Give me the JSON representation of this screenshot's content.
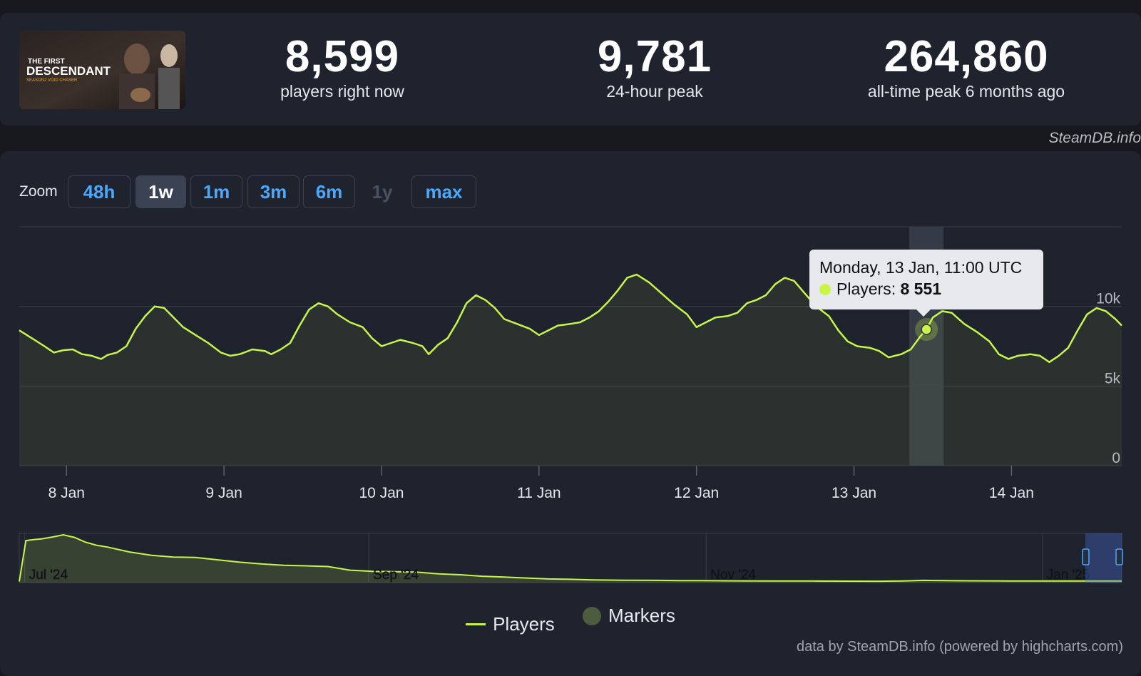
{
  "stats": [
    {
      "value": "8,599",
      "label": "players right now"
    },
    {
      "value": "9,781",
      "label": "24-hour peak"
    },
    {
      "value": "264,860",
      "label": "all-time peak 6 months ago"
    }
  ],
  "game": {
    "line1": "THE FIRST",
    "line2": "DESCENDANT",
    "line3": "SEASON2 VOID CHASER"
  },
  "credit_top": "SteamDB.info",
  "zoom": {
    "label": "Zoom",
    "buttons": [
      {
        "label": "48h",
        "state": "normal"
      },
      {
        "label": "1w",
        "state": "active"
      },
      {
        "label": "1m",
        "state": "normal"
      },
      {
        "label": "3m",
        "state": "normal"
      },
      {
        "label": "6m",
        "state": "normal"
      },
      {
        "label": "1y",
        "state": "disabled"
      },
      {
        "label": "max",
        "state": "normal"
      }
    ]
  },
  "tooltip": {
    "date": "Monday, 13 Jan, 11:00 UTC",
    "series": "Players:",
    "value": "8 551"
  },
  "legend": {
    "players": "Players",
    "markers": "Markers"
  },
  "credit_bottom": "data by SteamDB.info (powered by highcharts.com)",
  "colors": {
    "line": "#c9f54a",
    "accent": "#4aa8ff",
    "background": "#1f232e"
  },
  "chart_data": {
    "type": "line",
    "series": [
      {
        "name": "Players",
        "points": [
          [
            7.7,
            8500
          ],
          [
            7.78,
            8000
          ],
          [
            7.86,
            7500
          ],
          [
            7.92,
            7100
          ],
          [
            7.98,
            7250
          ],
          [
            8.04,
            7300
          ],
          [
            8.1,
            7000
          ],
          [
            8.16,
            6900
          ],
          [
            8.22,
            6700
          ],
          [
            8.26,
            6950
          ],
          [
            8.32,
            7100
          ],
          [
            8.38,
            7500
          ],
          [
            8.44,
            8600
          ],
          [
            8.5,
            9400
          ],
          [
            8.56,
            10000
          ],
          [
            8.62,
            9900
          ],
          [
            8.68,
            9300
          ],
          [
            8.74,
            8700
          ],
          [
            8.82,
            8200
          ],
          [
            8.9,
            7700
          ],
          [
            8.98,
            7100
          ],
          [
            9.04,
            6900
          ],
          [
            9.1,
            7000
          ],
          [
            9.18,
            7300
          ],
          [
            9.26,
            7200
          ],
          [
            9.3,
            7000
          ],
          [
            9.36,
            7300
          ],
          [
            9.42,
            7700
          ],
          [
            9.48,
            8800
          ],
          [
            9.54,
            9800
          ],
          [
            9.6,
            10200
          ],
          [
            9.66,
            10000
          ],
          [
            9.72,
            9500
          ],
          [
            9.8,
            9000
          ],
          [
            9.88,
            8700
          ],
          [
            9.94,
            8000
          ],
          [
            10.0,
            7500
          ],
          [
            10.06,
            7700
          ],
          [
            10.12,
            7900
          ],
          [
            10.2,
            7700
          ],
          [
            10.26,
            7500
          ],
          [
            10.3,
            7000
          ],
          [
            10.36,
            7600
          ],
          [
            10.42,
            8000
          ],
          [
            10.48,
            9000
          ],
          [
            10.54,
            10200
          ],
          [
            10.6,
            10700
          ],
          [
            10.66,
            10400
          ],
          [
            10.72,
            9900
          ],
          [
            10.78,
            9200
          ],
          [
            10.86,
            8900
          ],
          [
            10.94,
            8600
          ],
          [
            11.0,
            8200
          ],
          [
            11.06,
            8500
          ],
          [
            11.12,
            8800
          ],
          [
            11.2,
            8900
          ],
          [
            11.26,
            9000
          ],
          [
            11.32,
            9300
          ],
          [
            11.38,
            9700
          ],
          [
            11.44,
            10300
          ],
          [
            11.5,
            11000
          ],
          [
            11.56,
            11800
          ],
          [
            11.62,
            12000
          ],
          [
            11.7,
            11500
          ],
          [
            11.78,
            10800
          ],
          [
            11.86,
            10100
          ],
          [
            11.94,
            9500
          ],
          [
            12.0,
            8700
          ],
          [
            12.06,
            9000
          ],
          [
            12.12,
            9300
          ],
          [
            12.2,
            9400
          ],
          [
            12.26,
            9600
          ],
          [
            12.32,
            10200
          ],
          [
            12.38,
            10400
          ],
          [
            12.44,
            10700
          ],
          [
            12.5,
            11400
          ],
          [
            12.56,
            11800
          ],
          [
            12.62,
            11600
          ],
          [
            12.68,
            10900
          ],
          [
            12.76,
            10000
          ],
          [
            12.84,
            9400
          ],
          [
            12.9,
            8500
          ],
          [
            12.96,
            7800
          ],
          [
            13.02,
            7500
          ],
          [
            13.1,
            7400
          ],
          [
            13.16,
            7200
          ],
          [
            13.22,
            6800
          ],
          [
            13.3,
            7000
          ],
          [
            13.36,
            7300
          ],
          [
            13.42,
            8100
          ],
          [
            13.46,
            8551
          ],
          [
            13.5,
            9300
          ],
          [
            13.56,
            9700
          ],
          [
            13.62,
            9600
          ],
          [
            13.7,
            8900
          ],
          [
            13.78,
            8400
          ],
          [
            13.86,
            7800
          ],
          [
            13.92,
            7000
          ],
          [
            13.98,
            6700
          ],
          [
            14.04,
            6900
          ],
          [
            14.12,
            7000
          ],
          [
            14.18,
            6900
          ],
          [
            14.24,
            6500
          ],
          [
            14.3,
            6900
          ],
          [
            14.36,
            7400
          ],
          [
            14.42,
            8500
          ],
          [
            14.48,
            9500
          ],
          [
            14.54,
            9900
          ],
          [
            14.6,
            9700
          ],
          [
            14.66,
            9200
          ],
          [
            14.7,
            8800
          ]
        ]
      }
    ],
    "xlabel": "",
    "ylabel": "",
    "x_ticks": [
      {
        "value": 8,
        "label": "8 Jan"
      },
      {
        "value": 9,
        "label": "9 Jan"
      },
      {
        "value": 10,
        "label": "10 Jan"
      },
      {
        "value": 11,
        "label": "11 Jan"
      },
      {
        "value": 12,
        "label": "12 Jan"
      },
      {
        "value": 13,
        "label": "13 Jan"
      },
      {
        "value": 14,
        "label": "14 Jan"
      }
    ],
    "y_ticks": [
      {
        "value": 0,
        "label": "0"
      },
      {
        "value": 5000,
        "label": "5k"
      },
      {
        "value": 10000,
        "label": "10k"
      }
    ],
    "xlim": [
      7.7,
      14.7
    ],
    "ylim": [
      0,
      15000
    ],
    "highlight": {
      "x": 13.46,
      "y": 8551
    },
    "navigator": {
      "labels": [
        "Jul '24",
        "Sep '24",
        "Nov '24",
        "Jan '25"
      ],
      "points": [
        [
          0,
          6000
        ],
        [
          0.006,
          230000
        ],
        [
          0.012,
          235000
        ],
        [
          0.02,
          240000
        ],
        [
          0.03,
          250000
        ],
        [
          0.04,
          262000
        ],
        [
          0.05,
          248000
        ],
        [
          0.06,
          222000
        ],
        [
          0.07,
          205000
        ],
        [
          0.08,
          195000
        ],
        [
          0.1,
          168000
        ],
        [
          0.12,
          150000
        ],
        [
          0.14,
          140000
        ],
        [
          0.16,
          138000
        ],
        [
          0.18,
          125000
        ],
        [
          0.2,
          112000
        ],
        [
          0.22,
          102000
        ],
        [
          0.24,
          95000
        ],
        [
          0.26,
          92000
        ],
        [
          0.28,
          88000
        ],
        [
          0.3,
          68000
        ],
        [
          0.32,
          62000
        ],
        [
          0.34,
          60000
        ],
        [
          0.36,
          58000
        ],
        [
          0.38,
          48000
        ],
        [
          0.4,
          43000
        ],
        [
          0.42,
          35000
        ],
        [
          0.44,
          30000
        ],
        [
          0.46,
          25000
        ],
        [
          0.48,
          20000
        ],
        [
          0.5,
          18000
        ],
        [
          0.52,
          15000
        ],
        [
          0.55,
          13000
        ],
        [
          0.58,
          12000
        ],
        [
          0.6,
          11000
        ],
        [
          0.62,
          10500
        ],
        [
          0.65,
          9500
        ],
        [
          0.68,
          9000
        ],
        [
          0.7,
          9000
        ],
        [
          0.72,
          8500
        ],
        [
          0.75,
          8000
        ],
        [
          0.78,
          7500
        ],
        [
          0.8,
          8500
        ],
        [
          0.82,
          12000
        ],
        [
          0.85,
          10000
        ],
        [
          0.88,
          9500
        ],
        [
          0.9,
          9000
        ],
        [
          0.93,
          8800
        ],
        [
          0.96,
          8500
        ],
        [
          1,
          8500
        ]
      ]
    }
  }
}
